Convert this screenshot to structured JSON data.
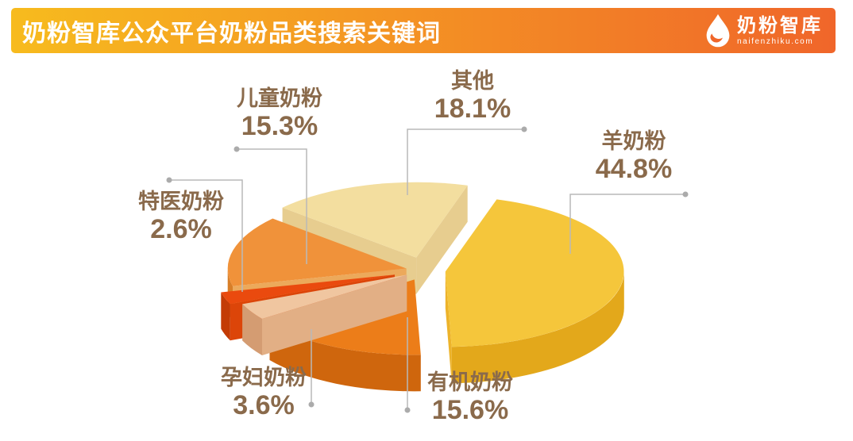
{
  "header": {
    "title": "奶粉智库公众平台奶粉品类搜索关键词",
    "gradient_left": "#F7BB1E",
    "gradient_right": "#F0662A",
    "logo": {
      "name": "奶粉智库",
      "domain": "naifenzhiku.com"
    }
  },
  "chart_data": {
    "type": "pie",
    "style": "3d-exploded",
    "title": "奶粉智库公众平台奶粉品类搜索关键词",
    "unit": "%",
    "label_color": "#8A6A4B",
    "leader_line_color": "#B9B9B9",
    "background": "#FFFFFF",
    "slices": [
      {
        "id": "goat-milk",
        "label": "羊奶粉",
        "value": 44.8,
        "pct_label": "44.8%",
        "colors": {
          "top": "#F5C63B",
          "side": "#E3A81B",
          "cut": "#EDB32A"
        }
      },
      {
        "id": "organic",
        "label": "有机奶粉",
        "value": 15.6,
        "pct_label": "15.6%",
        "colors": {
          "top": "#EC7D19",
          "side": "#CF660D",
          "cut": "#DD7716"
        }
      },
      {
        "id": "pregnant",
        "label": "孕妇奶粉",
        "value": 3.6,
        "pct_label": "3.6%",
        "colors": {
          "top": "#F0C6A0",
          "side": "#D49C72",
          "cut": "#E2AF85"
        }
      },
      {
        "id": "special-medical",
        "label": "特医奶粉",
        "value": 2.6,
        "pct_label": "2.6%",
        "colors": {
          "top": "#EA4A0E",
          "side": "#C33B06",
          "cut": "#DC4509"
        }
      },
      {
        "id": "children",
        "label": "儿童奶粉",
        "value": 15.3,
        "pct_label": "15.3%",
        "colors": {
          "top": "#F0923A",
          "side": "#D87E27",
          "cut": "#ECA95B"
        }
      },
      {
        "id": "other",
        "label": "其他",
        "value": 18.1,
        "pct_label": "18.1%",
        "colors": {
          "top": "#F3DE9F",
          "side": "#DFC17F",
          "cut": "#E7CD8F"
        }
      }
    ]
  }
}
